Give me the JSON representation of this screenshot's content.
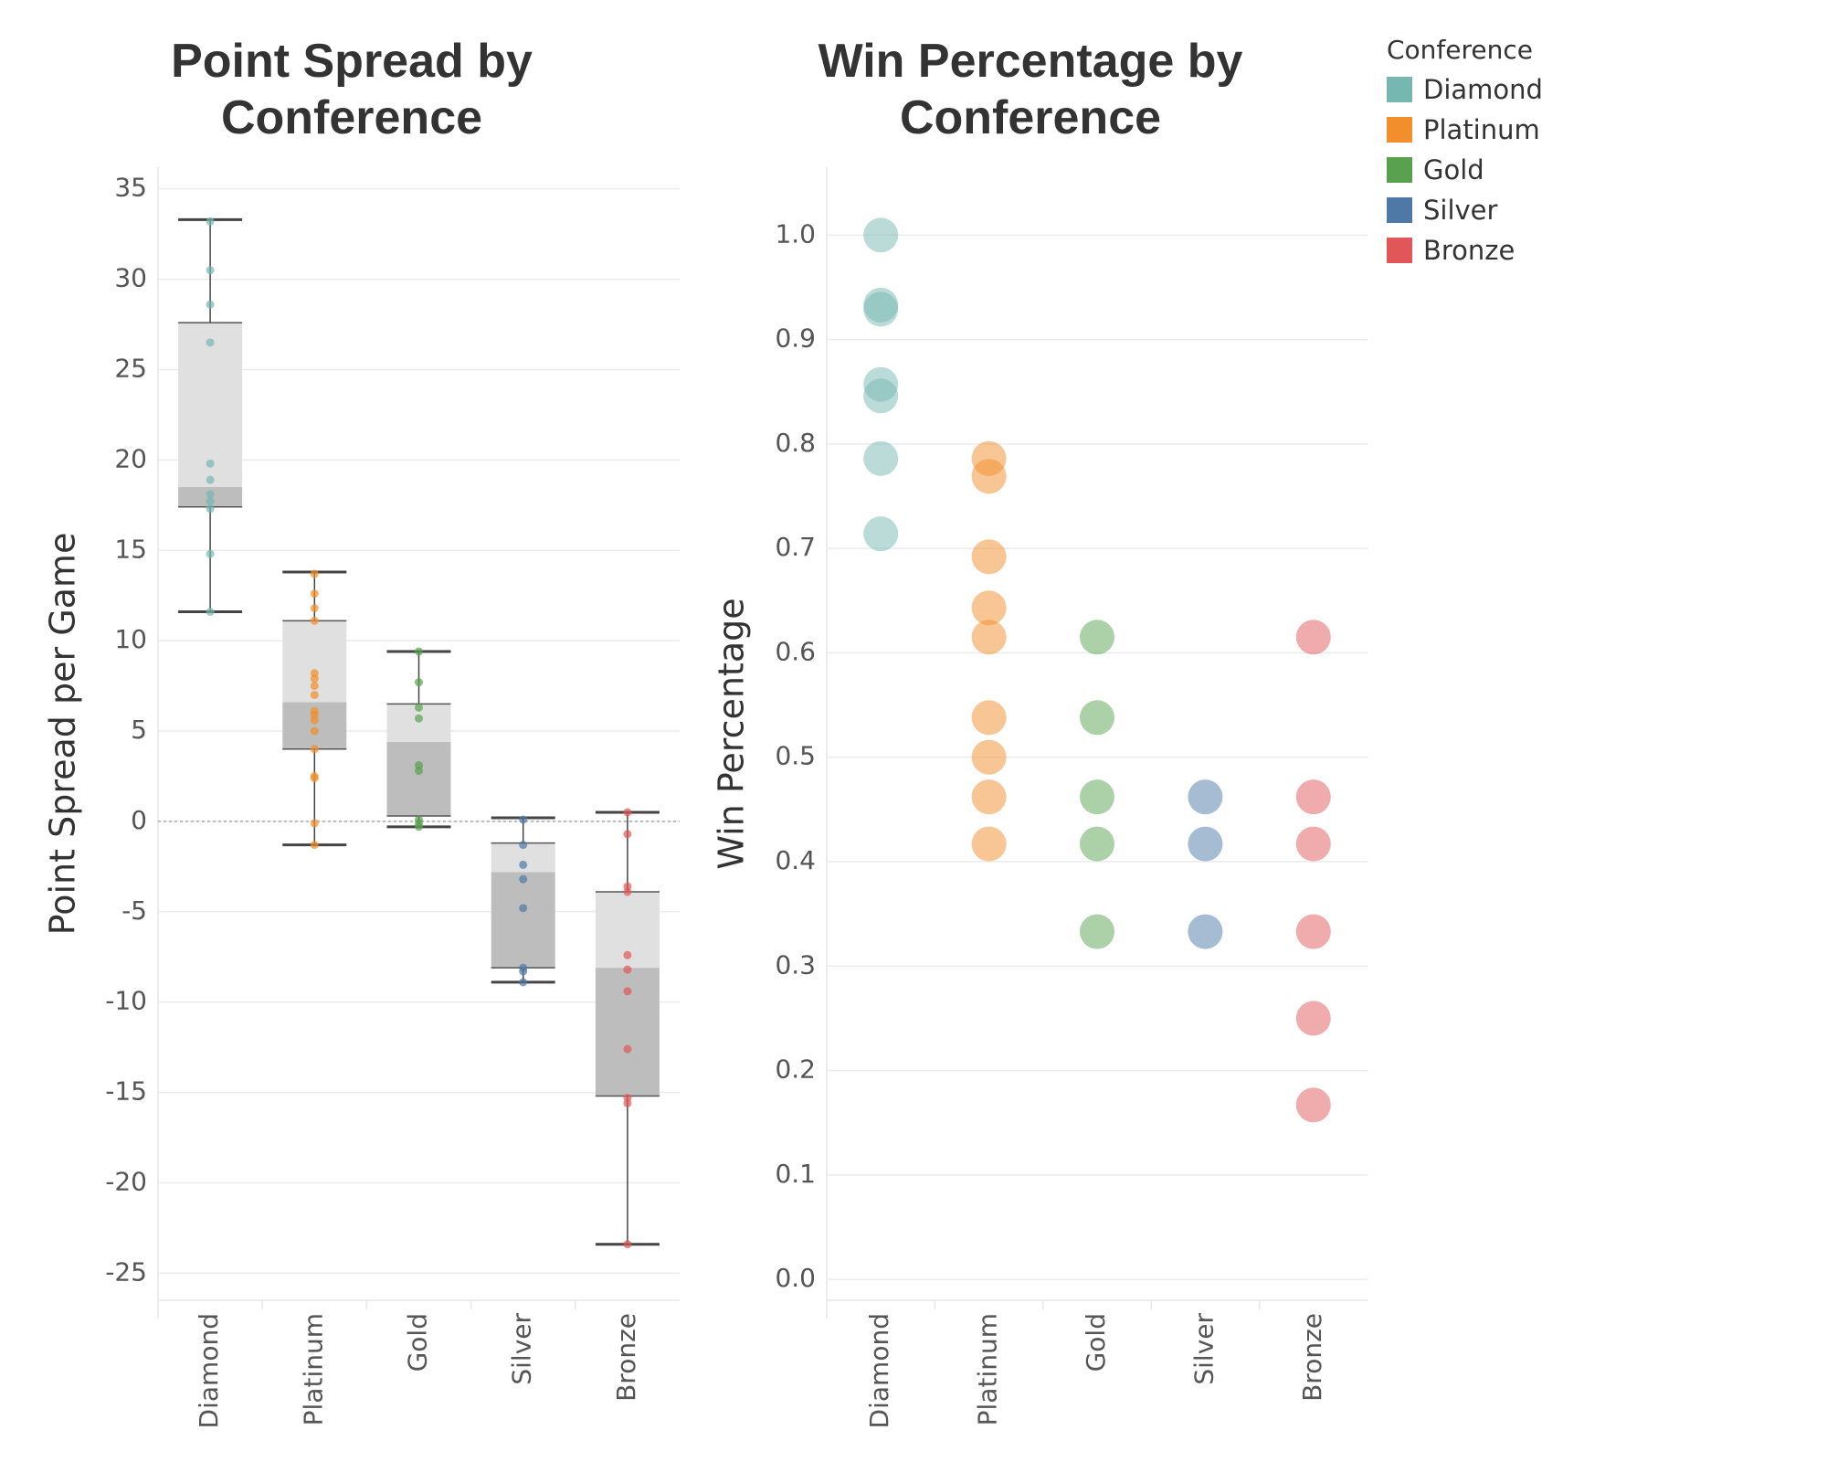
{
  "chart_data": [
    {
      "type": "box",
      "title": "Point Spread by Conference",
      "y_label": "Point Spread per Game",
      "categories": [
        "Diamond",
        "Platinum",
        "Gold",
        "Silver",
        "Bronze"
      ],
      "colors": [
        "#76b7b2",
        "#f28e2b",
        "#59a14f",
        "#4e79a7",
        "#e15759"
      ],
      "boxes": [
        {
          "whisker_low": 11.6,
          "q1": 17.4,
          "median": 18.5,
          "q3": 27.6,
          "whisker_high": 33.3,
          "points": [
            33.2,
            30.5,
            28.6,
            26.5,
            19.8,
            18.9,
            18.1,
            17.7,
            17.3,
            14.8,
            11.6
          ]
        },
        {
          "whisker_low": -1.3,
          "q1": 4.0,
          "median": 6.6,
          "q3": 11.1,
          "whisker_high": 13.8,
          "points": [
            13.7,
            12.6,
            11.8,
            11.1,
            8.2,
            7.9,
            7.5,
            7.0,
            6.1,
            5.9,
            5.6,
            5.0,
            4.0,
            2.5,
            2.4,
            -0.1,
            -1.3
          ]
        },
        {
          "whisker_low": -0.3,
          "q1": 0.3,
          "median": 4.4,
          "q3": 6.5,
          "whisker_high": 9.4,
          "points": [
            9.4,
            7.7,
            6.3,
            5.7,
            3.1,
            2.8,
            0.1,
            -0.1,
            -0.3
          ]
        },
        {
          "whisker_low": -8.9,
          "q1": -8.1,
          "median": -2.8,
          "q3": -1.2,
          "whisker_high": 0.2,
          "points": [
            0.1,
            -1.3,
            -2.4,
            -3.2,
            -4.8,
            -8.1,
            -8.3,
            -8.9
          ]
        },
        {
          "whisker_low": -23.4,
          "q1": -15.2,
          "median": -8.1,
          "q3": -3.9,
          "whisker_high": 0.5,
          "points": [
            0.5,
            -0.7,
            -3.6,
            -3.9,
            -7.4,
            -8.2,
            -9.4,
            -12.6,
            -15.3,
            -15.6,
            -23.4
          ]
        }
      ],
      "ylim": [
        -26.5,
        36.2
      ],
      "yticks": [
        -25,
        -20,
        -15,
        -10,
        -5,
        0,
        5,
        10,
        15,
        20,
        25,
        30,
        35
      ],
      "grid": true,
      "zero_line": true
    },
    {
      "type": "strip",
      "title": "Win Percentage by Conference",
      "y_label": "Win Percentage",
      "legend_title": "Conference",
      "legend": "outside-right",
      "series": [
        {
          "name": "Diamond",
          "color": "#76b7b2",
          "values": [
            1.0,
            0.933,
            0.929,
            0.857,
            0.846,
            0.786,
            0.714
          ]
        },
        {
          "name": "Platinum",
          "color": "#f28e2b",
          "values": [
            0.786,
            0.769,
            0.692,
            0.643,
            0.615,
            0.538,
            0.5,
            0.462,
            0.417
          ]
        },
        {
          "name": "Gold",
          "color": "#59a14f",
          "values": [
            0.615,
            0.538,
            0.462,
            0.417,
            0.333
          ]
        },
        {
          "name": "Silver",
          "color": "#4e79a7",
          "values": [
            0.462,
            0.417,
            0.333
          ]
        },
        {
          "name": "Bronze",
          "color": "#e15759",
          "values": [
            0.615,
            0.462,
            0.417,
            0.333,
            0.25,
            0.167
          ]
        }
      ],
      "ylim": [
        -0.02,
        1.065
      ],
      "yticks": [
        {
          "value": 0,
          "label": "0.0"
        },
        0.1,
        0.2,
        0.3,
        0.4,
        0.5,
        0.6,
        0.7,
        0.8,
        0.9,
        {
          "value": 1,
          "label": "1.0"
        }
      ],
      "grid": true
    }
  ]
}
